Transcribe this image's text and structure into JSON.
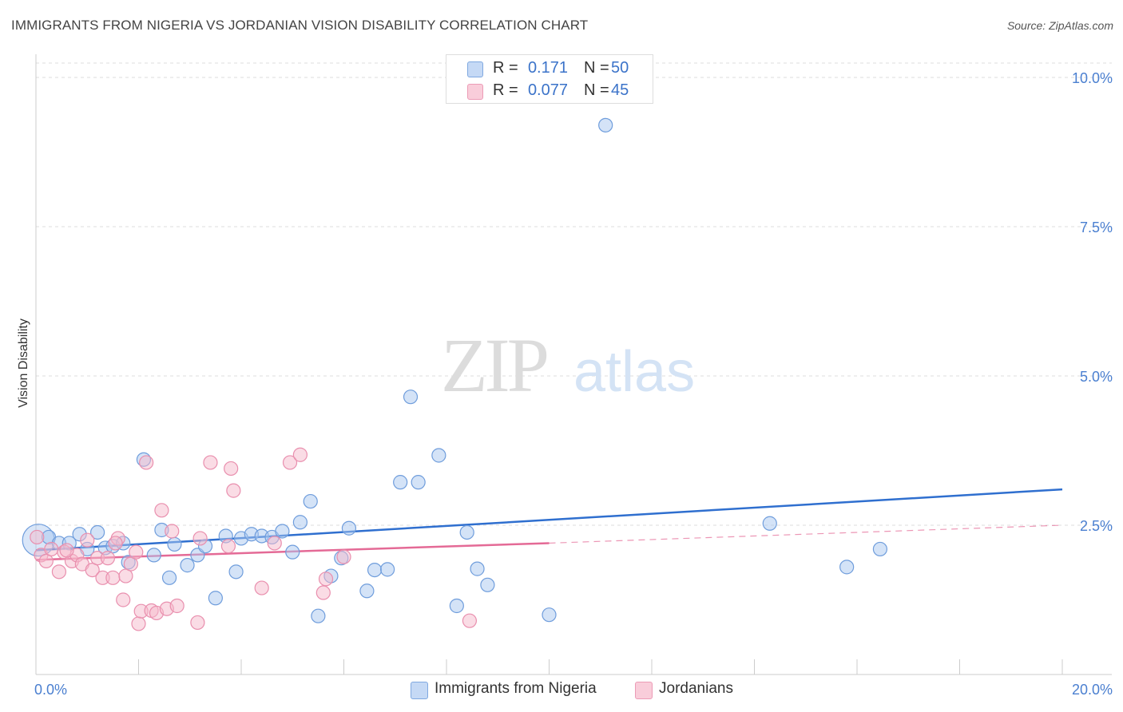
{
  "title": "IMMIGRANTS FROM NIGERIA VS JORDANIAN VISION DISABILITY CORRELATION CHART",
  "source": "Source: ZipAtlas.com",
  "watermark": {
    "zip": "ZIP",
    "atlas": "atlas"
  },
  "colors": {
    "blue_fill": "#aac8f0",
    "blue_stroke": "#6f9ddc",
    "blue_line": "#2f6fcf",
    "pink_fill": "#f6b9cc",
    "pink_stroke": "#e98fae",
    "pink_line": "#e46a96",
    "tick": "#4a7fd0",
    "grid": "#dddddd"
  },
  "legend": {
    "rows": [
      {
        "swatch": "blue",
        "r_label": "R =",
        "r_value": "0.171",
        "n_label": "N =",
        "n_value": "50"
      },
      {
        "swatch": "pink",
        "r_label": "R =",
        "r_value": "0.077",
        "n_label": "N =",
        "n_value": "45"
      }
    ]
  },
  "bottom_legend": [
    {
      "swatch": "blue",
      "label": "Immigrants from Nigeria"
    },
    {
      "swatch": "pink",
      "label": "Jordanians"
    }
  ],
  "chart_data": {
    "type": "scatter",
    "title": "IMMIGRANTS FROM NIGERIA VS JORDANIAN VISION DISABILITY CORRELATION CHART",
    "xlabel": "",
    "ylabel": "Vision Disability",
    "xlim": [
      0,
      20
    ],
    "ylim": [
      0,
      10.5
    ],
    "x_tick_labels": [
      "0.0%",
      "20.0%"
    ],
    "y_ticks": [
      {
        "value": 2.5,
        "label": "2.5%"
      },
      {
        "value": 5.0,
        "label": "5.0%"
      },
      {
        "value": 7.5,
        "label": "7.5%"
      },
      {
        "value": 10.0,
        "label": "10.0%"
      }
    ],
    "grid": true,
    "series": [
      {
        "name": "Immigrants from Nigeria",
        "color": "blue",
        "points": [
          {
            "x": 0.05,
            "y": 2.25,
            "big": true
          },
          {
            "x": 0.25,
            "y": 2.3
          },
          {
            "x": 0.45,
            "y": 2.2
          },
          {
            "x": 0.65,
            "y": 2.2
          },
          {
            "x": 0.85,
            "y": 2.35
          },
          {
            "x": 1.0,
            "y": 2.1
          },
          {
            "x": 1.2,
            "y": 2.38
          },
          {
            "x": 1.35,
            "y": 2.12
          },
          {
            "x": 1.5,
            "y": 2.15
          },
          {
            "x": 1.7,
            "y": 2.2
          },
          {
            "x": 1.8,
            "y": 1.88
          },
          {
            "x": 2.1,
            "y": 3.6
          },
          {
            "x": 2.3,
            "y": 2.0
          },
          {
            "x": 2.45,
            "y": 2.42
          },
          {
            "x": 2.6,
            "y": 1.62
          },
          {
            "x": 2.7,
            "y": 2.18
          },
          {
            "x": 2.95,
            "y": 1.83
          },
          {
            "x": 3.15,
            "y": 2.0
          },
          {
            "x": 3.3,
            "y": 2.15
          },
          {
            "x": 3.5,
            "y": 1.28
          },
          {
            "x": 3.7,
            "y": 2.32
          },
          {
            "x": 3.9,
            "y": 1.72
          },
          {
            "x": 4.0,
            "y": 2.28
          },
          {
            "x": 4.2,
            "y": 2.35
          },
          {
            "x": 4.4,
            "y": 2.32
          },
          {
            "x": 4.6,
            "y": 2.3
          },
          {
            "x": 4.8,
            "y": 2.4
          },
          {
            "x": 5.0,
            "y": 2.05
          },
          {
            "x": 5.15,
            "y": 2.55
          },
          {
            "x": 5.35,
            "y": 2.9
          },
          {
            "x": 5.5,
            "y": 0.98
          },
          {
            "x": 5.75,
            "y": 1.65
          },
          {
            "x": 5.95,
            "y": 1.95
          },
          {
            "x": 6.1,
            "y": 2.45
          },
          {
            "x": 6.45,
            "y": 1.4
          },
          {
            "x": 6.6,
            "y": 1.75
          },
          {
            "x": 6.85,
            "y": 1.76
          },
          {
            "x": 7.1,
            "y": 3.22
          },
          {
            "x": 7.3,
            "y": 4.65
          },
          {
            "x": 7.45,
            "y": 3.22
          },
          {
            "x": 7.85,
            "y": 3.67
          },
          {
            "x": 8.2,
            "y": 1.15
          },
          {
            "x": 8.4,
            "y": 2.38
          },
          {
            "x": 8.6,
            "y": 1.77
          },
          {
            "x": 8.8,
            "y": 1.5
          },
          {
            "x": 10.0,
            "y": 1.0
          },
          {
            "x": 11.1,
            "y": 9.2
          },
          {
            "x": 14.3,
            "y": 2.53
          },
          {
            "x": 15.8,
            "y": 1.8
          },
          {
            "x": 16.45,
            "y": 2.1
          }
        ],
        "trend": {
          "x0": 0,
          "y0": 2.08,
          "x1": 20,
          "y1": 3.1
        }
      },
      {
        "name": "Jordanians",
        "color": "pink",
        "points": [
          {
            "x": 0.1,
            "y": 2.0
          },
          {
            "x": 0.2,
            "y": 1.9
          },
          {
            "x": 0.3,
            "y": 2.1
          },
          {
            "x": 0.45,
            "y": 1.72
          },
          {
            "x": 0.55,
            "y": 2.05
          },
          {
            "x": 0.7,
            "y": 1.9
          },
          {
            "x": 0.8,
            "y": 2.0
          },
          {
            "x": 0.9,
            "y": 1.85
          },
          {
            "x": 1.0,
            "y": 2.25
          },
          {
            "x": 1.1,
            "y": 1.75
          },
          {
            "x": 1.2,
            "y": 1.95
          },
          {
            "x": 1.3,
            "y": 1.62
          },
          {
            "x": 1.4,
            "y": 1.95
          },
          {
            "x": 1.5,
            "y": 1.62
          },
          {
            "x": 1.6,
            "y": 2.28
          },
          {
            "x": 1.7,
            "y": 1.25
          },
          {
            "x": 1.75,
            "y": 1.65
          },
          {
            "x": 1.85,
            "y": 1.85
          },
          {
            "x": 1.95,
            "y": 2.05
          },
          {
            "x": 2.0,
            "y": 0.85
          },
          {
            "x": 2.05,
            "y": 1.06
          },
          {
            "x": 2.15,
            "y": 3.55
          },
          {
            "x": 2.25,
            "y": 1.07
          },
          {
            "x": 2.35,
            "y": 1.03
          },
          {
            "x": 2.45,
            "y": 2.75
          },
          {
            "x": 2.55,
            "y": 1.1
          },
          {
            "x": 2.65,
            "y": 2.4
          },
          {
            "x": 2.75,
            "y": 1.15
          },
          {
            "x": 3.15,
            "y": 0.87
          },
          {
            "x": 3.2,
            "y": 2.28
          },
          {
            "x": 3.4,
            "y": 3.55
          },
          {
            "x": 3.75,
            "y": 2.15
          },
          {
            "x": 3.8,
            "y": 3.45
          },
          {
            "x": 3.85,
            "y": 3.08
          },
          {
            "x": 4.4,
            "y": 1.45
          },
          {
            "x": 4.65,
            "y": 2.2
          },
          {
            "x": 4.95,
            "y": 3.55
          },
          {
            "x": 5.15,
            "y": 3.68
          },
          {
            "x": 5.6,
            "y": 1.37
          },
          {
            "x": 5.65,
            "y": 1.6
          },
          {
            "x": 6.0,
            "y": 1.97
          },
          {
            "x": 8.45,
            "y": 0.9
          },
          {
            "x": 0.02,
            "y": 2.3
          },
          {
            "x": 0.6,
            "y": 2.08
          },
          {
            "x": 1.55,
            "y": 2.2
          }
        ],
        "trend_solid": {
          "x0": 0,
          "y0": 1.92,
          "x1": 10,
          "y1": 2.2
        },
        "trend_dashed": {
          "x0": 10,
          "y0": 2.2,
          "x1": 20,
          "y1": 2.5
        }
      }
    ]
  }
}
